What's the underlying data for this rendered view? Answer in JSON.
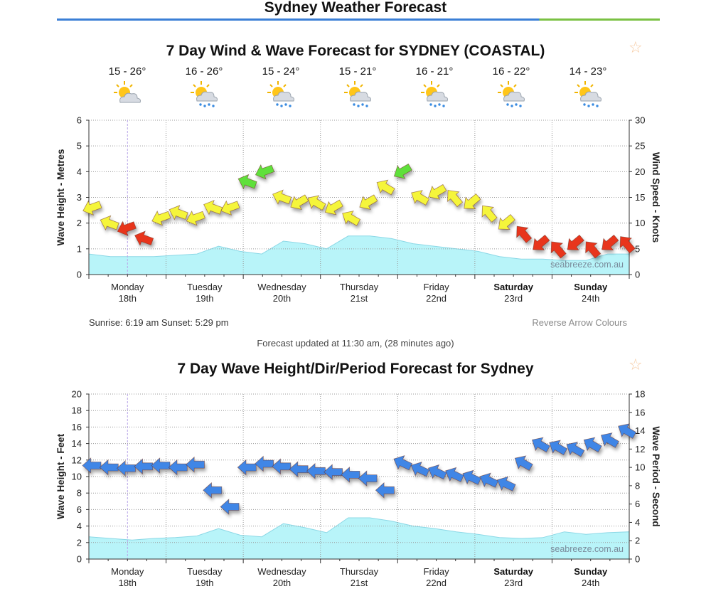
{
  "page": {
    "title": "Sydney Weather Forecast"
  },
  "colors": {
    "wave_fill": "#b8f4f9",
    "wave_stroke": "#8cd8e6",
    "arrow_red": "#e8351e",
    "arrow_yellow": "#f5f53a",
    "arrow_green": "#5ee03a",
    "arrow_blue": "#3f86e6",
    "grid": "#9a9a9a",
    "accent_blue": "#3b7fd6",
    "accent_green": "#7ac143"
  },
  "wind_forecast": {
    "title": "7 Day Wind & Wave Forecast for SYDNEY (COASTAL)",
    "days": [
      {
        "temp": "15 - 26°",
        "icon": "partly-cloudy-icon"
      },
      {
        "temp": "16 - 26°",
        "icon": "showers-icon"
      },
      {
        "temp": "15 - 24°",
        "icon": "showers-icon"
      },
      {
        "temp": "15 - 21°",
        "icon": "showers-icon"
      },
      {
        "temp": "16 - 21°",
        "icon": "showers-icon"
      },
      {
        "temp": "16 - 22°",
        "icon": "showers-icon"
      },
      {
        "temp": "14 - 23°",
        "icon": "showers-icon"
      }
    ],
    "sunrise_sunset": "Sunrise: 6:19 am  Sunset: 5:29 pm",
    "reverse_label": "Reverse Arrow Colours",
    "updated": "Forecast updated at 11:30 am, (28 minutes ago)"
  },
  "wave_forecast": {
    "title": "7 Day Wave Height/Dir/Period Forecast for Sydney"
  },
  "chart_data": [
    {
      "type": "area+arrows",
      "title": "7 Day Wind & Wave Forecast for SYDNEY (COASTAL)",
      "ylabel_left": "Wave Height - Metres",
      "ylabel_right": "Wind Speed - Knots",
      "ylim_left": [
        0,
        6
      ],
      "ylim_right": [
        0,
        30
      ],
      "yticks_left": [
        "0",
        "1",
        "2",
        "3",
        "4",
        "5",
        "6"
      ],
      "yticks_right": [
        "0",
        "5",
        "10",
        "15",
        "20",
        "25",
        "30"
      ],
      "days": [
        {
          "name": "Monday",
          "date": "18th",
          "bold": false
        },
        {
          "name": "Tuesday",
          "date": "19th",
          "bold": false
        },
        {
          "name": "Wednesday",
          "date": "20th",
          "bold": false
        },
        {
          "name": "Thursday",
          "date": "21st",
          "bold": false
        },
        {
          "name": "Friday",
          "date": "22nd",
          "bold": false
        },
        {
          "name": "Saturday",
          "date": "23rd",
          "bold": true
        },
        {
          "name": "Sunday",
          "date": "24th",
          "bold": true
        }
      ],
      "watermark": "seabreeze.com.au",
      "wave_height_m": [
        0.8,
        0.7,
        0.7,
        0.7,
        0.75,
        0.8,
        1.1,
        0.9,
        0.8,
        1.3,
        1.2,
        1.0,
        1.5,
        1.5,
        1.4,
        1.2,
        1.1,
        1.0,
        0.9,
        0.7,
        0.6,
        0.6,
        0.55,
        0.55,
        0.8,
        0.8
      ],
      "wind_knots": [
        13,
        10,
        9,
        7,
        11,
        12,
        11,
        13,
        13,
        18,
        20,
        15,
        14,
        14,
        13,
        11,
        14,
        17,
        20,
        15,
        16,
        15,
        14,
        12,
        10,
        8,
        6,
        5,
        6,
        5,
        6,
        6
      ]
    },
    {
      "type": "area+arrows",
      "title": "7 Day Wave Height/Dir/Period Forecast for Sydney",
      "ylabel_left": "Wave Height - Feet",
      "ylabel_right": "Wave Period - Second",
      "ylim_left": [
        0,
        20
      ],
      "ylim_right": [
        0,
        18
      ],
      "yticks_left": [
        "0",
        "2",
        "4",
        "6",
        "8",
        "10",
        "12",
        "14",
        "16",
        "18",
        "20"
      ],
      "yticks_right": [
        "0",
        "2",
        "4",
        "6",
        "8",
        "10",
        "12",
        "14",
        "16",
        "18"
      ],
      "days": [
        {
          "name": "Monday",
          "date": "18th",
          "bold": false
        },
        {
          "name": "Tuesday",
          "date": "19th",
          "bold": false
        },
        {
          "name": "Wednesday",
          "date": "20th",
          "bold": false
        },
        {
          "name": "Thursday",
          "date": "21st",
          "bold": false
        },
        {
          "name": "Friday",
          "date": "22nd",
          "bold": false
        },
        {
          "name": "Saturday",
          "date": "23rd",
          "bold": true
        },
        {
          "name": "Sunday",
          "date": "24th",
          "bold": true
        }
      ],
      "watermark": "seabreeze.com.au",
      "wave_height_ft": [
        2.7,
        2.5,
        2.3,
        2.5,
        2.6,
        2.8,
        3.7,
        2.9,
        2.7,
        4.3,
        3.8,
        3.2,
        5.0,
        5.0,
        4.6,
        4.0,
        3.7,
        3.3,
        3.0,
        2.6,
        2.5,
        2.6,
        3.3,
        3.0,
        3.2,
        3.3
      ],
      "wave_period_s": [
        10.2,
        10.0,
        9.9,
        10.1,
        10.2,
        10.0,
        10.3,
        7.5,
        5.7,
        10.0,
        10.4,
        10.1,
        9.8,
        9.6,
        9.5,
        9.2,
        8.8,
        7.5,
        10.5,
        9.8,
        9.5,
        9.2,
        8.9,
        8.6,
        8.2,
        10.5,
        12.5,
        12.2,
        12.0,
        12.5,
        13.0,
        14.0
      ]
    }
  ]
}
